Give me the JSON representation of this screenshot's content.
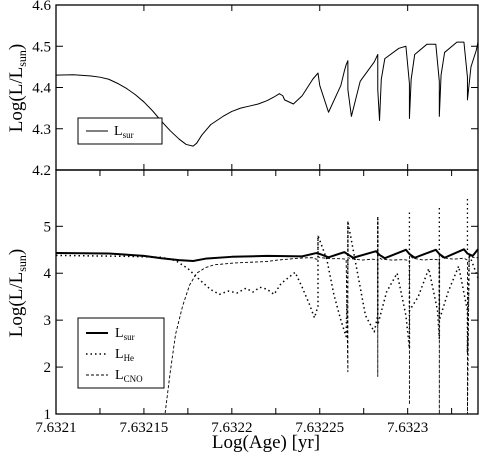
{
  "chart_data": [
    {
      "type": "line",
      "panel": "top",
      "xlabel": "",
      "ylabel": "Log(L/L",
      "ylabel_sub": "sun",
      "ylabel_suffix": ")",
      "xlim": [
        7.6321,
        7.63234
      ],
      "ylim": [
        4.2,
        4.6
      ],
      "yticks": [
        4.2,
        4.3,
        4.4,
        4.5,
        4.6
      ],
      "ytick_labels": [
        "4.2",
        "4.3",
        "4.4",
        "4.5",
        "4.6"
      ],
      "xticks": [
        7.6321,
        7.63215,
        7.6322,
        7.63225,
        7.6323
      ],
      "legend_position": "lower-left",
      "series": [
        {
          "name": "L",
          "name_sub": "sur",
          "style": "solid",
          "x": [
            7.6321,
            7.63211,
            7.63212,
            7.632125,
            7.63213,
            7.632135,
            7.63214,
            7.632145,
            7.63215,
            7.632155,
            7.63216,
            7.632165,
            7.63217,
            7.632174,
            7.632178,
            7.63218,
            7.632183,
            7.632188,
            7.632195,
            7.6322,
            7.632205,
            7.63221,
            7.632215,
            7.63222,
            7.632224,
            7.632227,
            7.632229,
            7.63223,
            7.632235,
            7.63224,
            7.632243,
            7.632246,
            7.632248,
            7.632249,
            7.63225,
            7.632255,
            7.632262,
            7.632264,
            7.632265,
            7.632266,
            7.632266,
            7.632268,
            7.632273,
            7.632281,
            7.632283,
            7.632283,
            7.632284,
            7.632285,
            7.632287,
            7.632295,
            7.632299,
            7.632301,
            7.632301,
            7.632302,
            7.632304,
            7.632311,
            7.632316,
            7.632318,
            7.632318,
            7.632319,
            7.632321,
            7.632328,
            7.632332,
            7.632334,
            7.632334,
            7.632336,
            7.632339,
            7.63234
          ],
          "y": [
            4.43,
            4.431,
            4.428,
            4.425,
            4.42,
            4.41,
            4.398,
            4.383,
            4.365,
            4.343,
            4.318,
            4.295,
            4.275,
            4.262,
            4.258,
            4.265,
            4.285,
            4.31,
            4.33,
            4.342,
            4.35,
            4.355,
            4.36,
            4.368,
            4.377,
            4.385,
            4.38,
            4.37,
            4.36,
            4.38,
            4.4,
            4.42,
            4.43,
            4.435,
            4.405,
            4.34,
            4.405,
            4.44,
            4.455,
            4.465,
            4.395,
            4.33,
            4.415,
            4.462,
            4.48,
            4.395,
            4.32,
            4.42,
            4.47,
            4.495,
            4.5,
            4.41,
            4.325,
            4.42,
            4.48,
            4.505,
            4.505,
            4.415,
            4.33,
            4.43,
            4.485,
            4.51,
            4.51,
            4.425,
            4.37,
            4.45,
            4.49,
            4.51
          ]
        }
      ]
    },
    {
      "type": "line",
      "panel": "bottom",
      "xlabel": "Log(Age) [yr]",
      "ylabel": "Log(L/L",
      "ylabel_sub": "sun",
      "ylabel_suffix": ")",
      "xlim": [
        7.6321,
        7.63234
      ],
      "ylim": [
        1,
        6.2
      ],
      "yticks": [
        1,
        2,
        3,
        4,
        5
      ],
      "ytick_labels": [
        "1",
        "2",
        "3",
        "4",
        "5"
      ],
      "xticks": [
        7.6321,
        7.632125,
        7.63215,
        7.632175,
        7.6322,
        7.632225,
        7.63225,
        7.632275,
        7.6323,
        7.632325
      ],
      "xtick_labels": [
        "7.6321",
        "7.63215",
        "7.6322",
        "7.63225",
        "7.6323"
      ],
      "xtick_label_values": [
        7.6321,
        7.63215,
        7.6322,
        7.63225,
        7.6323
      ],
      "legend_position": "lower-left",
      "series": [
        {
          "name": "L",
          "name_sub": "sur",
          "style": "solid",
          "x": [
            7.6321,
            7.63213,
            7.63215,
            7.63216,
            7.63217,
            7.632178,
            7.632185,
            7.6322,
            7.63222,
            7.63224,
            7.632248,
            7.63225,
            7.632255,
            7.632264,
            7.632266,
            7.632269,
            7.632282,
            7.632284,
            7.632287,
            7.632299,
            7.632301,
            7.632304,
            7.632316,
            7.632318,
            7.632321,
            7.632332,
            7.632334,
            7.632337,
            7.63234
          ],
          "y": [
            4.43,
            4.42,
            4.37,
            4.32,
            4.28,
            4.26,
            4.31,
            4.35,
            4.37,
            4.36,
            4.43,
            4.41,
            4.34,
            4.45,
            4.4,
            4.33,
            4.47,
            4.39,
            4.32,
            4.5,
            4.41,
            4.33,
            4.5,
            4.41,
            4.33,
            4.51,
            4.42,
            4.37,
            4.51
          ]
        },
        {
          "name": "L",
          "name_sub": "He",
          "style": "dotted",
          "x": [
            7.6321,
            7.63212,
            7.63214,
            7.63216,
            7.632168,
            7.632175,
            7.632182,
            7.632188,
            7.632193,
            7.632198,
            7.632203,
            7.632208,
            7.632212,
            7.632216,
            7.63222,
            7.632224,
            7.632228,
            7.632232,
            7.632236,
            7.63224,
            7.632244,
            7.632247,
            7.632249,
            7.632249,
            7.632254,
            7.632258,
            7.632262,
            7.632265,
            7.632266,
            7.632266,
            7.632271,
            7.632276,
            7.632281,
            7.632283,
            7.632283,
            7.632283,
            7.632288,
            7.632294,
            7.632299,
            7.632301,
            7.632301,
            7.632301,
            7.632306,
            7.632312,
            7.632317,
            7.632318,
            7.632318,
            7.632318,
            7.632323,
            7.632329,
            7.632334,
            7.632334,
            7.632335,
            7.63234
          ],
          "y": [
            4.38,
            4.37,
            4.36,
            4.34,
            4.27,
            4.1,
            3.85,
            3.65,
            3.55,
            3.62,
            3.58,
            3.68,
            3.6,
            3.7,
            3.66,
            3.55,
            3.78,
            3.9,
            4.02,
            3.7,
            3.35,
            3.05,
            3.3,
            4.8,
            4.3,
            3.55,
            3.0,
            2.65,
            4.2,
            5.1,
            4.1,
            3.1,
            2.75,
            3.1,
            5.15,
            2.9,
            3.6,
            4.0,
            3.1,
            2.4,
            4.3,
            3.2,
            3.5,
            4.1,
            3.2,
            2.6,
            4.3,
            3.0,
            3.6,
            4.15,
            3.2,
            2.3,
            4.4,
            3.9
          ]
        },
        {
          "name": "L",
          "name_sub": "CNO",
          "style": "dashed",
          "x": [
            7.6321,
            7.632162,
            7.632165,
            7.632168,
            7.632172,
            7.632176,
            7.63218,
            7.632185,
            7.63219,
            7.632196,
            7.632202,
            7.632208,
            7.632214,
            7.63222,
            7.632226,
            7.632232,
            7.632238,
            7.632243,
            7.632246,
            7.632248,
            7.632249,
            7.632249,
            7.632251,
            7.632256,
            7.632262,
            7.632265,
            7.632266,
            7.632266,
            7.632268,
            7.632274,
            7.63228,
            7.632283,
            7.632283,
            7.632283,
            7.632285,
            7.632291,
            7.632298,
            7.632301,
            7.632301,
            7.632301,
            7.632303,
            7.632309,
            7.632315,
            7.632318,
            7.632318,
            7.632318,
            7.63232,
            7.632326,
            7.632332,
            7.632334,
            7.632334,
            7.632335,
            7.632337,
            7.63234
          ],
          "y": [
            1.0,
            1.0,
            1.9,
            2.7,
            3.3,
            3.75,
            4.0,
            4.12,
            4.18,
            4.2,
            4.22,
            4.23,
            4.24,
            4.25,
            4.28,
            4.3,
            4.32,
            4.33,
            4.33,
            4.3,
            4.3,
            4.35,
            4.33,
            4.31,
            4.31,
            4.3,
            1.9,
            4.33,
            4.31,
            4.28,
            4.3,
            4.28,
            1.8,
            4.36,
            4.3,
            4.28,
            4.29,
            4.27,
            1.2,
            4.38,
            4.32,
            4.28,
            4.3,
            4.28,
            1.0,
            4.4,
            4.33,
            4.3,
            4.32,
            4.28,
            1.0,
            4.4,
            4.34,
            4.33
          ]
        },
        {
          "name": "",
          "style": "dotted",
          "role": "spikes",
          "spikes": [
            [
              7.632249,
              4.4,
              4.8
            ],
            [
              7.632266,
              4.4,
              5.1
            ],
            [
              7.632283,
              4.4,
              5.2
            ],
            [
              7.632301,
              4.4,
              5.35
            ],
            [
              7.632318,
              4.4,
              5.45
            ],
            [
              7.632334,
              4.4,
              5.6
            ]
          ]
        }
      ]
    }
  ]
}
